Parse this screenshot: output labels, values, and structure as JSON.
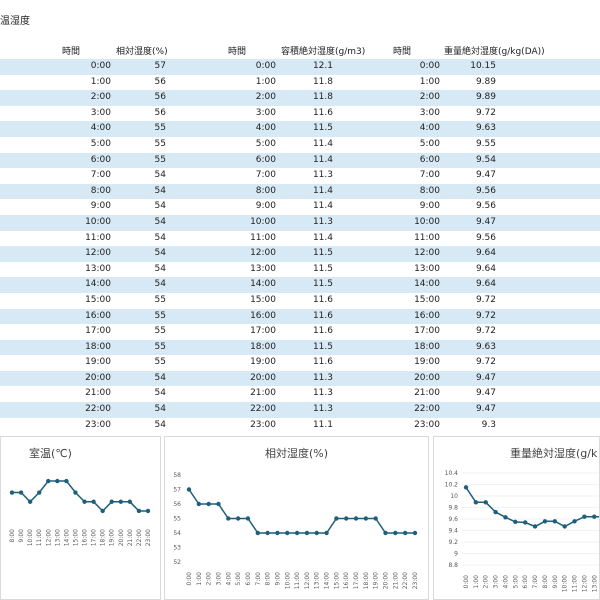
{
  "sheet_title": "温湿度",
  "table": {
    "headers": [
      "時間",
      "相対湿度(%)",
      "時間",
      "容積絶対湿度(g/m3)",
      "時間",
      "重量絶対湿度(g/kg(DA))"
    ],
    "rows": [
      [
        "0:00",
        "57",
        "0:00",
        "12.1",
        "0:00",
        "10.15"
      ],
      [
        "1:00",
        "56",
        "1:00",
        "11.8",
        "1:00",
        "9.89"
      ],
      [
        "2:00",
        "56",
        "2:00",
        "11.8",
        "2:00",
        "9.89"
      ],
      [
        "3:00",
        "56",
        "3:00",
        "11.6",
        "3:00",
        "9.72"
      ],
      [
        "4:00",
        "55",
        "4:00",
        "11.5",
        "4:00",
        "9.63"
      ],
      [
        "5:00",
        "55",
        "5:00",
        "11.4",
        "5:00",
        "9.55"
      ],
      [
        "6:00",
        "55",
        "6:00",
        "11.4",
        "6:00",
        "9.54"
      ],
      [
        "7:00",
        "54",
        "7:00",
        "11.3",
        "7:00",
        "9.47"
      ],
      [
        "8:00",
        "54",
        "8:00",
        "11.4",
        "8:00",
        "9.56"
      ],
      [
        "9:00",
        "54",
        "9:00",
        "11.4",
        "9:00",
        "9.56"
      ],
      [
        "10:00",
        "54",
        "10:00",
        "11.3",
        "10:00",
        "9.47"
      ],
      [
        "11:00",
        "54",
        "11:00",
        "11.4",
        "11:00",
        "9.56"
      ],
      [
        "12:00",
        "54",
        "12:00",
        "11.5",
        "12:00",
        "9.64"
      ],
      [
        "13:00",
        "54",
        "13:00",
        "11.5",
        "13:00",
        "9.64"
      ],
      [
        "14:00",
        "54",
        "14:00",
        "11.5",
        "14:00",
        "9.64"
      ],
      [
        "15:00",
        "55",
        "15:00",
        "11.6",
        "15:00",
        "9.72"
      ],
      [
        "16:00",
        "55",
        "16:00",
        "11.6",
        "16:00",
        "9.72"
      ],
      [
        "17:00",
        "55",
        "17:00",
        "11.6",
        "17:00",
        "9.72"
      ],
      [
        "18:00",
        "55",
        "18:00",
        "11.5",
        "18:00",
        "9.63"
      ],
      [
        "19:00",
        "55",
        "19:00",
        "11.6",
        "19:00",
        "9.72"
      ],
      [
        "20:00",
        "54",
        "20:00",
        "11.3",
        "20:00",
        "9.47"
      ],
      [
        "21:00",
        "54",
        "21:00",
        "11.3",
        "21:00",
        "9.47"
      ],
      [
        "22:00",
        "54",
        "22:00",
        "11.3",
        "22:00",
        "9.47"
      ],
      [
        "23:00",
        "54",
        "23:00",
        "11.1",
        "23:00",
        "9.3"
      ]
    ]
  },
  "colors": {
    "line": "#1f5f7a",
    "row_shade": "#d6e9f5"
  },
  "chart_data": [
    {
      "type": "line",
      "title": "室温(℃)",
      "categories": [
        "8:00",
        "9:00",
        "10:00",
        "11:00",
        "12:00",
        "13:00",
        "14:00",
        "15:00",
        "16:00",
        "17:00",
        "18:00",
        "19:00",
        "20:00",
        "21:00",
        "22:00",
        "23:00"
      ],
      "values": [
        26.8,
        26.8,
        26.0,
        26.8,
        27.8,
        27.8,
        27.8,
        26.8,
        26.0,
        26.0,
        25.2,
        26.0,
        26.0,
        26.0,
        25.2,
        25.2
      ],
      "xlabel": "",
      "ylabel": ""
    },
    {
      "type": "line",
      "title": "相対湿度(%)",
      "categories": [
        "0:00",
        "1:00",
        "2:00",
        "3:00",
        "4:00",
        "5:00",
        "6:00",
        "7:00",
        "8:00",
        "9:00",
        "10:00",
        "11:00",
        "12:00",
        "13:00",
        "14:00",
        "15:00",
        "16:00",
        "17:00",
        "18:00",
        "19:00",
        "20:00",
        "21:00",
        "22:00",
        "23:00"
      ],
      "values": [
        57,
        56,
        56,
        56,
        55,
        55,
        55,
        54,
        54,
        54,
        54,
        54,
        54,
        54,
        54,
        55,
        55,
        55,
        55,
        55,
        54,
        54,
        54,
        54
      ],
      "yticks": [
        52,
        53,
        54,
        55,
        56,
        57,
        58
      ],
      "ylim": [
        52,
        58
      ],
      "xlabel": "",
      "ylabel": ""
    },
    {
      "type": "line",
      "title": "重量絶対湿度(g/k",
      "categories": [
        "0:00",
        "1:00",
        "2:00",
        "3:00",
        "4:00",
        "5:00",
        "6:00",
        "7:00",
        "8:00",
        "9:00",
        "10:00",
        "11:00",
        "12:00",
        "13:00",
        "14:00",
        "15:00"
      ],
      "values": [
        10.15,
        9.89,
        9.89,
        9.72,
        9.63,
        9.55,
        9.54,
        9.47,
        9.56,
        9.56,
        9.47,
        9.56,
        9.64,
        9.64,
        9.64,
        9.72
      ],
      "yticks": [
        "8.8",
        "9",
        "9.2",
        "9.4",
        "9.6",
        "9.8",
        "10",
        "10.2",
        "10.4"
      ],
      "ylim": [
        8.8,
        10.4
      ],
      "xlabel": "",
      "ylabel": ""
    }
  ]
}
